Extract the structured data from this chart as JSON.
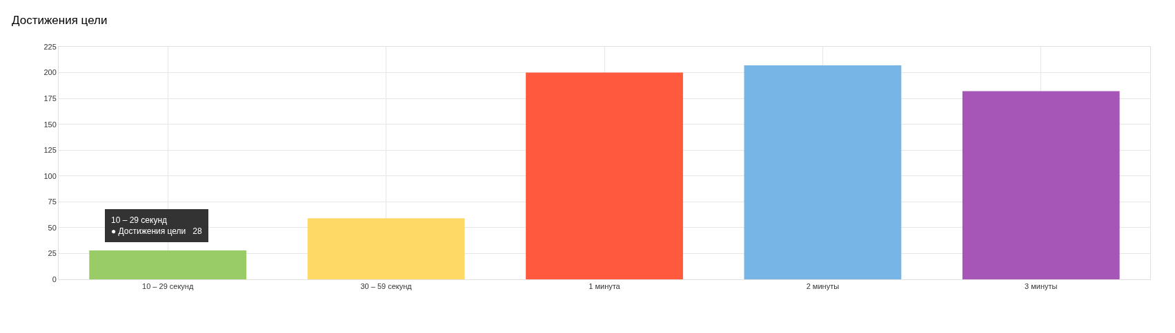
{
  "chart_data": {
    "type": "bar",
    "title": "Достижения цели",
    "categories": [
      "10 – 29 секунд",
      "30 – 59 секунд",
      "1 минута",
      "2 минуты",
      "3 минуты"
    ],
    "values": [
      28,
      59,
      200,
      207,
      182
    ],
    "colors": [
      "#99cc66",
      "#ffd966",
      "#ff5a3d",
      "#77b5e6",
      "#a656b6"
    ],
    "ylim": [
      0,
      225
    ],
    "yticks": [
      0,
      25,
      50,
      75,
      100,
      125,
      150,
      175,
      200,
      225
    ],
    "grid": true,
    "legend": false,
    "annotations": [
      {
        "text": "10 – 29 секунд\n● Достижения цели   28",
        "x": "10 – 29 секунд",
        "y": 28
      }
    ]
  }
}
